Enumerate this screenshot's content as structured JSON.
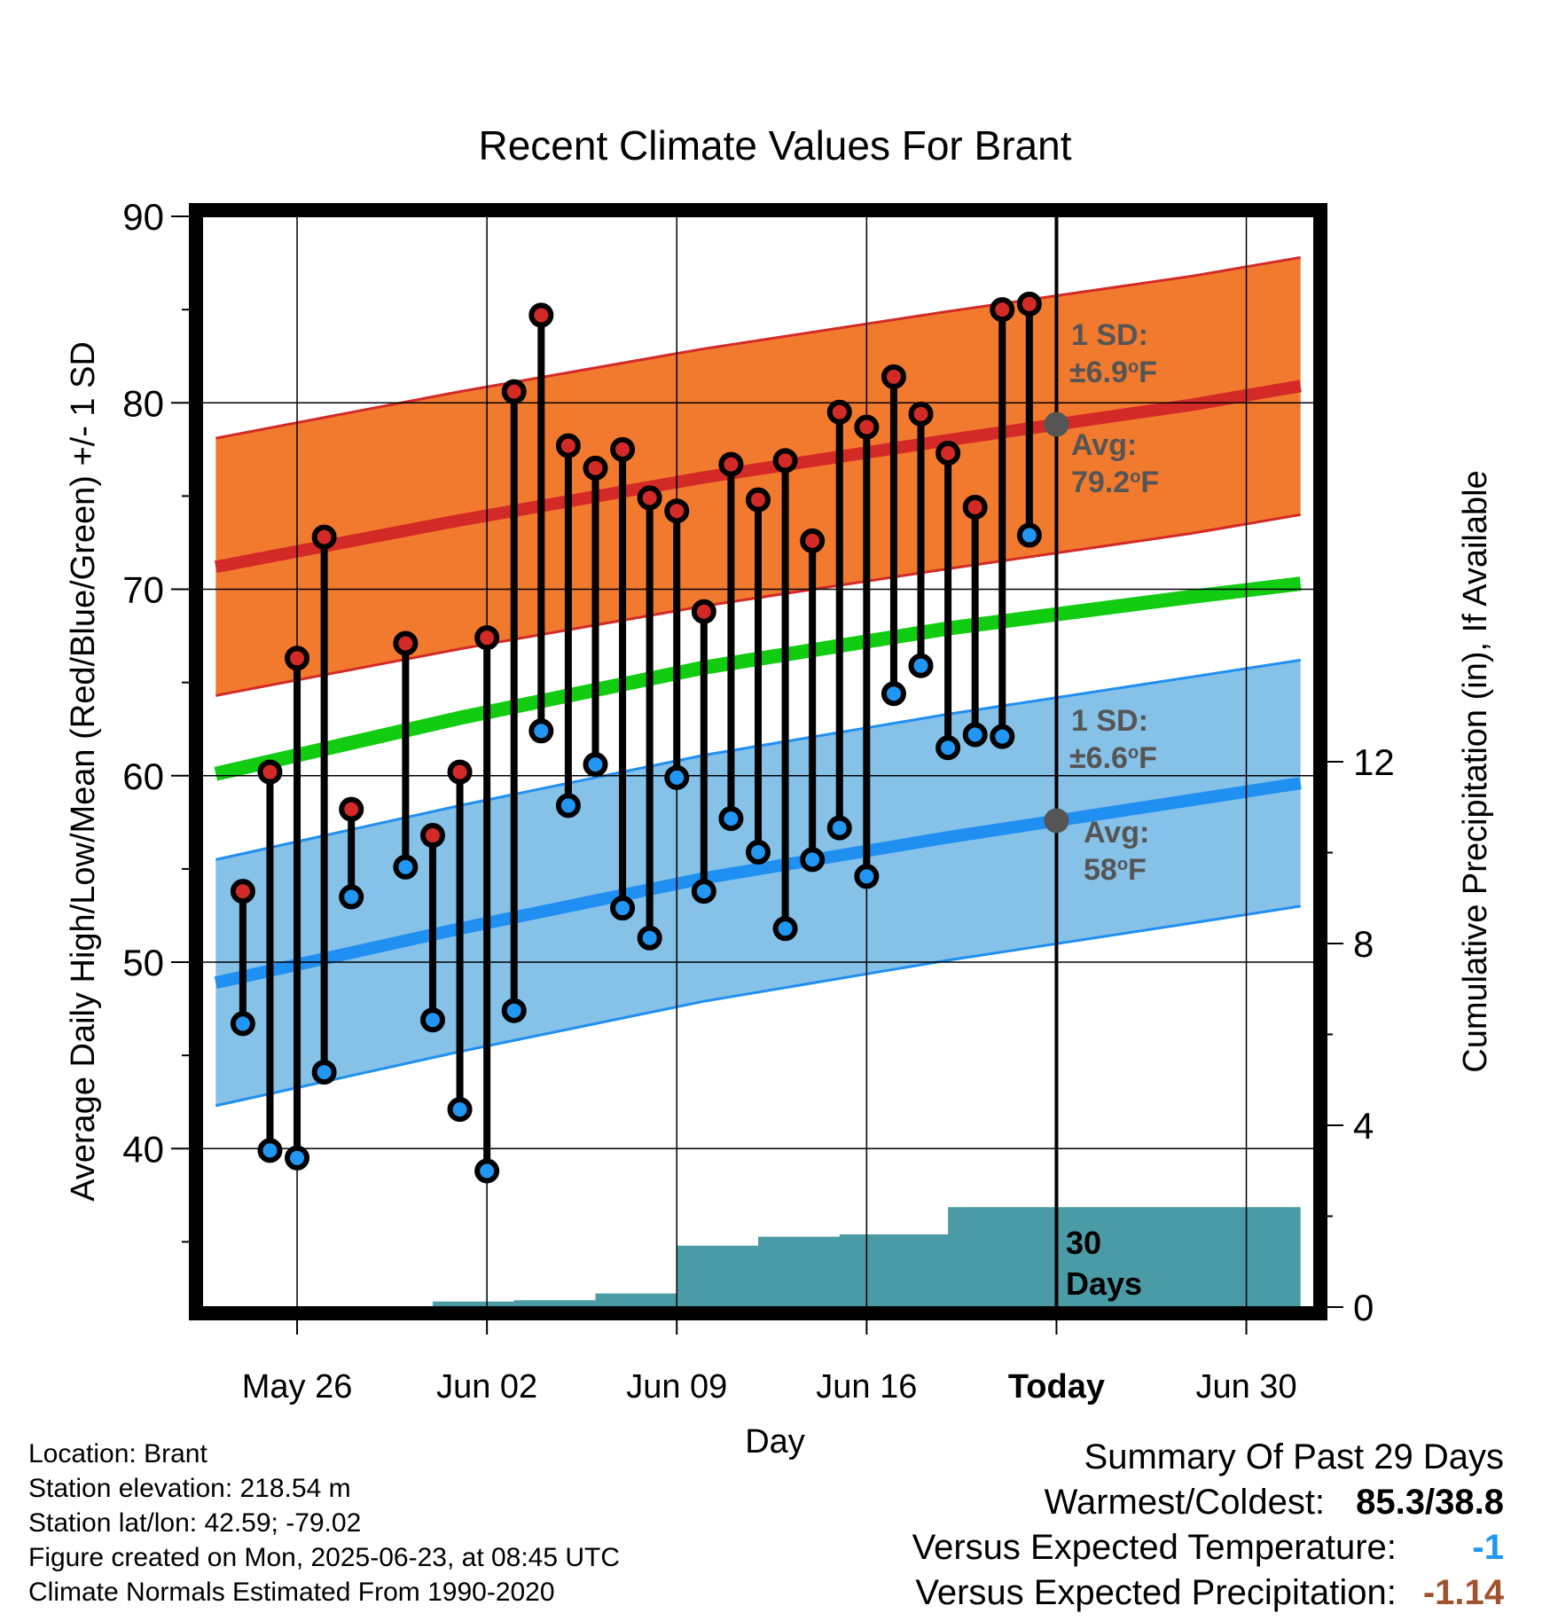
{
  "colors": {
    "high_band": "#f27a2e",
    "high_line": "#d42a27",
    "low_band": "#86c1e8",
    "low_line": "#1f8ff2",
    "mean_line": "#11cc11",
    "precip": "#4a9ba5",
    "high_marker": "#d42a27",
    "low_marker": "#2196f3",
    "annotation": "#555555",
    "versus_temp": "#2196f3",
    "versus_precip": "#a0522d"
  },
  "chart_data": {
    "type": "line",
    "title": "Recent Climate Values For Brant",
    "xlabel": "Day",
    "ylabel": "Average Daily High/Low/Mean (Red/Blue/Green) +/- 1 SD",
    "y2label": "Cumulative Precipitation (in), If Available",
    "ylim": [
      31.5,
      90
    ],
    "y2lim": [
      0,
      24
    ],
    "y_ticks": [
      "40",
      "50",
      "60",
      "70",
      "80",
      "90"
    ],
    "y2_ticks": [
      "0",
      "4",
      "8",
      "12"
    ],
    "x_tick_labels": [
      "May 26",
      "Jun 02",
      "Jun 09",
      "Jun 16",
      "Today",
      "Jun 30"
    ],
    "x_tick_dates": [
      "2025-05-26",
      "2025-06-02",
      "2025-06-09",
      "2025-06-16",
      "2025-06-23",
      "2025-06-30"
    ],
    "xlim": [
      "2025-05-22 12:00",
      "2025-07-02 12:00"
    ],
    "today": "2025-06-23",
    "grid": true,
    "normals": {
      "dates": [
        "2025-05-23",
        "2025-06-01",
        "2025-06-10",
        "2025-06-19",
        "2025-06-28",
        "2025-07-02"
      ],
      "high_avg": [
        71.2,
        73.7,
        76.0,
        78.0,
        79.9,
        80.9
      ],
      "high_sd": 6.9,
      "low_avg": [
        48.9,
        51.8,
        54.5,
        56.7,
        58.7,
        59.6
      ],
      "low_sd": 6.6,
      "mean_avg": [
        60.1,
        63.1,
        65.8,
        67.9,
        69.6,
        70.3
      ]
    },
    "daily": {
      "dates": [
        "2025-05-24",
        "2025-05-25",
        "2025-05-26",
        "2025-05-27",
        "2025-05-28",
        "2025-05-30",
        "2025-05-31",
        "2025-06-01",
        "2025-06-02",
        "2025-06-03",
        "2025-06-04",
        "2025-06-05",
        "2025-06-06",
        "2025-06-07",
        "2025-06-08",
        "2025-06-09",
        "2025-06-10",
        "2025-06-11",
        "2025-06-12",
        "2025-06-13",
        "2025-06-14",
        "2025-06-15",
        "2025-06-16",
        "2025-06-17",
        "2025-06-18",
        "2025-06-19",
        "2025-06-20",
        "2025-06-21",
        "2025-06-22"
      ],
      "high": [
        53.8,
        60.2,
        66.3,
        72.8,
        58.2,
        67.1,
        56.8,
        60.2,
        67.4,
        80.6,
        84.7,
        77.7,
        76.5,
        77.5,
        74.9,
        74.2,
        68.8,
        76.7,
        74.8,
        76.9,
        72.6,
        79.5,
        78.7,
        81.4,
        79.4,
        77.3,
        74.4,
        85.0,
        85.3
      ],
      "low": [
        46.7,
        39.9,
        39.5,
        44.1,
        53.5,
        55.1,
        46.9,
        42.1,
        38.8,
        47.4,
        62.4,
        58.4,
        60.6,
        52.9,
        51.3,
        59.9,
        53.8,
        57.7,
        55.9,
        51.8,
        55.5,
        57.2,
        54.6,
        64.4,
        65.9,
        61.5,
        62.2,
        62.1,
        72.9
      ]
    },
    "precip": {
      "dates": [
        "2025-05-22",
        "2025-05-25",
        "2025-05-28",
        "2025-05-31",
        "2025-06-03",
        "2025-06-06",
        "2025-06-09",
        "2025-06-12",
        "2025-06-15",
        "2025-06-19",
        "2025-06-22",
        "2025-07-02"
      ],
      "cumulative": [
        0,
        0,
        0,
        0.12,
        0.15,
        0.3,
        1.35,
        1.55,
        1.6,
        2.2,
        2.2,
        2.2
      ]
    },
    "annotations": {
      "high_sd_label": "1 SD:",
      "high_sd_value": "±6.9",
      "high_avg_label": "Avg:",
      "high_avg_value": "79.2",
      "low_sd_label": "1 SD:",
      "low_sd_value": "±6.6",
      "low_avg_label": "Avg:",
      "low_avg_value": "58",
      "unit": "F",
      "degree": "o",
      "days_line1": "30",
      "days_line2": "Days"
    }
  },
  "footer": {
    "location": "Location: Brant",
    "elevation": "Station elevation: 218.54 m",
    "latlon": "Station lat/lon: 42.59; -79.02",
    "created": "Figure created on Mon, 2025-06-23, at 08:45 UTC",
    "normals": "Climate Normals Estimated From 1990-2020"
  },
  "summary": {
    "title": "Summary Of Past 29 Days",
    "warmest_label": "Warmest/Coldest:",
    "warmest_value": "85.3/38.8",
    "versus_temp_label": "Versus Expected Temperature:",
    "versus_temp_value": "-1",
    "versus_precip_label": "Versus Expected Precipitation:",
    "versus_precip_value": "-1.14"
  }
}
